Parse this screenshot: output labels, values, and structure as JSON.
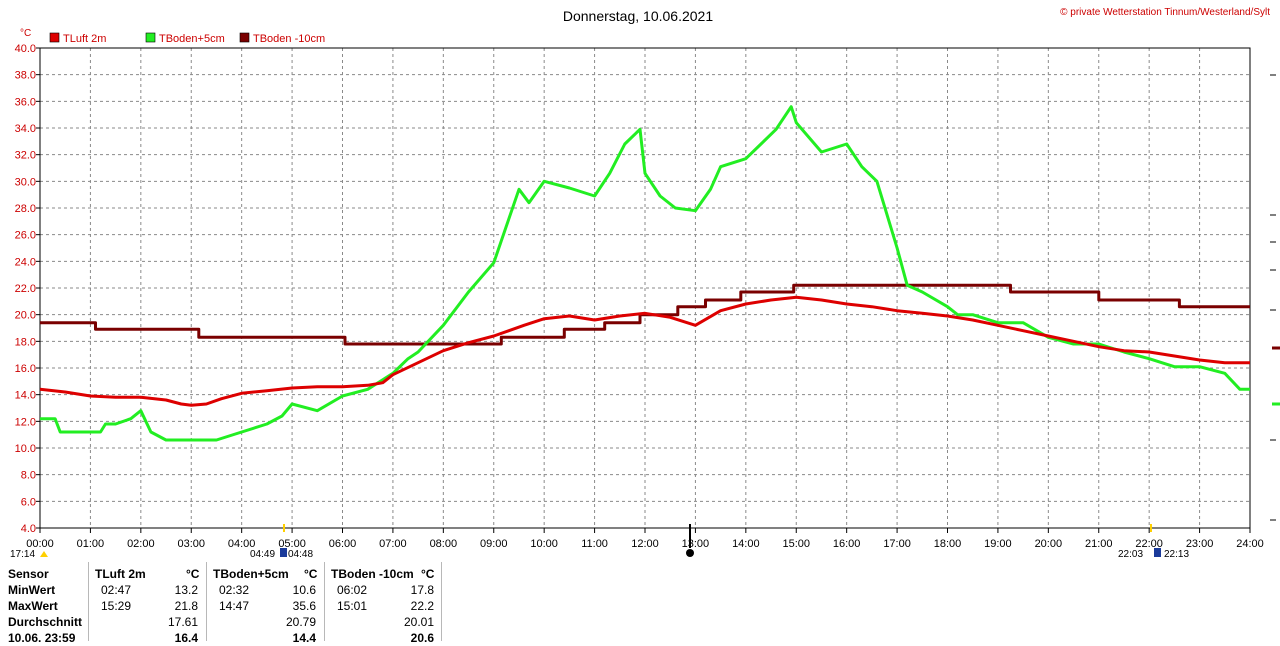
{
  "title": "Donnerstag, 10.06.2021",
  "copyright": "© private Wetterstation Tinnum/Westerland/Sylt",
  "unit_label": "°C",
  "colors": {
    "tluft": "#dd0000",
    "tboden5": "#22ee22",
    "tboden10": "#7a0000",
    "grid": "#888888"
  },
  "sun": {
    "sunset_prev": "17:14",
    "sunrise_left": "04:49",
    "sunrise_right": "04:48",
    "sunset_left": "22:03",
    "sunset_right": "22:13"
  },
  "chart_data": {
    "type": "line",
    "title": "Donnerstag, 10.06.2021",
    "ylabel": "°C",
    "ylim": [
      4,
      40
    ],
    "xlim": [
      0,
      24
    ],
    "x_ticks": [
      "00:00",
      "01:00",
      "02:00",
      "03:00",
      "04:00",
      "05:00",
      "06:00",
      "07:00",
      "08:00",
      "09:00",
      "10:00",
      "11:00",
      "12:00",
      "13:00",
      "14:00",
      "15:00",
      "16:00",
      "17:00",
      "18:00",
      "19:00",
      "20:00",
      "21:00",
      "22:00",
      "23:00",
      "24:00"
    ],
    "y_ticks": [
      "4.0",
      "6.0",
      "8.0",
      "10.0",
      "12.0",
      "14.0",
      "16.0",
      "18.0",
      "20.0",
      "22.0",
      "24.0",
      "26.0",
      "28.0",
      "30.0",
      "32.0",
      "34.0",
      "36.0",
      "38.0",
      "40.0"
    ],
    "legend": "top-left",
    "grid": true,
    "series": [
      {
        "name": "TLuft 2m",
        "color": "#dd0000",
        "x": [
          0,
          0.5,
          1,
          1.5,
          2,
          2.5,
          2.8,
          3,
          3.3,
          3.6,
          4,
          4.5,
          5,
          5.5,
          6,
          6.5,
          6.8,
          7,
          7.5,
          8,
          8.5,
          9,
          9.3,
          9.6,
          10,
          10.5,
          11,
          11.5,
          12,
          12.5,
          13,
          13.5,
          14,
          14.5,
          15,
          15.5,
          16,
          16.5,
          17,
          17.5,
          18,
          18.5,
          19,
          19.5,
          20,
          20.5,
          21,
          21.5,
          22,
          22.5,
          23,
          23.5,
          24
        ],
        "values": [
          14.4,
          14.2,
          13.9,
          13.8,
          13.8,
          13.6,
          13.3,
          13.2,
          13.3,
          13.7,
          14.1,
          14.3,
          14.5,
          14.6,
          14.6,
          14.7,
          14.9,
          15.5,
          16.4,
          17.3,
          17.9,
          18.4,
          18.8,
          19.2,
          19.7,
          19.9,
          19.6,
          19.9,
          20.1,
          19.8,
          19.2,
          20.3,
          20.8,
          21.1,
          21.3,
          21.1,
          20.8,
          20.6,
          20.3,
          20.1,
          19.9,
          19.6,
          19.2,
          18.8,
          18.4,
          18.0,
          17.6,
          17.3,
          17.2,
          16.9,
          16.6,
          16.4,
          16.4
        ]
      },
      {
        "name": "TBoden+5cm",
        "color": "#22ee22",
        "x": [
          0,
          0.3,
          0.4,
          1.2,
          1.3,
          1.5,
          1.8,
          2,
          2.2,
          2.5,
          2.6,
          3,
          3.5,
          4,
          4.5,
          4.8,
          5,
          5.5,
          6,
          6.5,
          7,
          7.3,
          7.5,
          8,
          8.5,
          9,
          9.3,
          9.5,
          9.7,
          10,
          10.5,
          11,
          11.3,
          11.6,
          11.9,
          12,
          12.3,
          12.6,
          13,
          13.3,
          13.5,
          14,
          14.3,
          14.6,
          14.9,
          15,
          15.5,
          16,
          16.3,
          16.6,
          17,
          17.2,
          17.5,
          18,
          18.2,
          18.5,
          19,
          19.5,
          20,
          20.5,
          21,
          21.5,
          22,
          22.5,
          23,
          23.5,
          23.8,
          24
        ],
        "values": [
          12.2,
          12.2,
          11.2,
          11.2,
          11.8,
          11.8,
          12.2,
          12.8,
          11.2,
          10.6,
          10.6,
          10.6,
          10.6,
          11.2,
          11.8,
          12.4,
          13.3,
          12.8,
          13.9,
          14.4,
          15.6,
          16.7,
          17.2,
          19.2,
          21.7,
          23.9,
          27.2,
          29.4,
          28.4,
          30.0,
          29.5,
          28.9,
          30.6,
          32.8,
          33.9,
          30.6,
          28.9,
          28.0,
          27.8,
          29.4,
          31.1,
          31.7,
          32.8,
          33.9,
          35.6,
          34.4,
          32.2,
          32.8,
          31.1,
          30.0,
          25.0,
          22.2,
          21.7,
          20.6,
          20.0,
          20.0,
          19.4,
          19.4,
          18.3,
          17.8,
          17.8,
          17.2,
          16.7,
          16.1,
          16.1,
          15.6,
          14.4,
          14.4
        ]
      },
      {
        "name": "TBoden -10cm",
        "color": "#7a0000",
        "x": [
          0,
          1.1,
          1.1,
          3.15,
          3.15,
          6.05,
          6.05,
          9.15,
          9.15,
          10.4,
          10.4,
          11.2,
          11.2,
          11.9,
          11.9,
          12.65,
          12.65,
          13.2,
          13.2,
          13.9,
          13.9,
          14.95,
          14.95,
          19.25,
          19.25,
          21.0,
          21.0,
          22.6,
          22.6,
          24
        ],
        "values": [
          19.4,
          19.4,
          18.9,
          18.9,
          18.3,
          18.3,
          17.8,
          17.8,
          18.3,
          18.3,
          18.9,
          18.9,
          19.4,
          19.4,
          20.0,
          20.0,
          20.6,
          20.6,
          21.1,
          21.1,
          21.7,
          21.7,
          22.2,
          22.2,
          21.7,
          21.7,
          21.1,
          21.1,
          20.6,
          20.6
        ]
      }
    ]
  },
  "stats": {
    "headers": {
      "sensor": "Sensor",
      "s1": "TLuft 2m",
      "s2": "TBoden+5cm",
      "s3": "TBoden -10cm",
      "unit": "°C"
    },
    "rows": [
      {
        "label": "MinWert",
        "t1": "02:47",
        "v1": "13.2",
        "t2": "02:32",
        "v2": "10.6",
        "t3": "06:02",
        "v3": "17.8"
      },
      {
        "label": "MaxWert",
        "t1": "15:29",
        "v1": "21.8",
        "t2": "14:47",
        "v2": "35.6",
        "t3": "15:01",
        "v3": "22.2"
      },
      {
        "label": "Durchschnitt",
        "t1": "",
        "v1": "17.61",
        "t2": "",
        "v2": "20.79",
        "t3": "",
        "v3": "20.01"
      },
      {
        "label": "10.06. 23:59",
        "t1": "",
        "v1": "16.4",
        "t2": "",
        "v2": "14.4",
        "t3": "",
        "v3": "20.6"
      }
    ]
  }
}
